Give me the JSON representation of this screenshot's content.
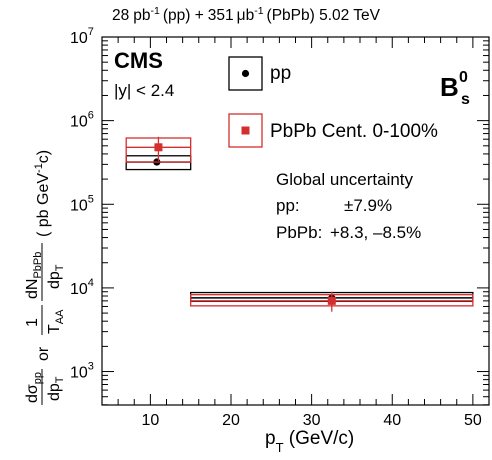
{
  "chart_data": {
    "type": "scatter",
    "header": {
      "lumi_pp": "28",
      "lumi_pp_unit": "pb",
      "lumi_pp_exp": "-1",
      "lumi_pp_label": "(pp) +",
      "lumi_pbpb": "351",
      "lumi_pbpb_unit": "μb",
      "lumi_pbpb_exp": "-1",
      "lumi_pbpb_label": "(PbPb) 5.02 TeV"
    },
    "experiment": "CMS",
    "rapidity_cut": "|y| < 2.4",
    "particle": {
      "base": "B",
      "sup": "0",
      "sub": "s"
    },
    "xlabel": {
      "main": "p",
      "sub": "T",
      "unit": " (GeV/c)"
    },
    "ylabel": {
      "pp_num": "dσ",
      "pp_num_sub": "pp",
      "pp_den": "dp",
      "pp_den_sub": "T",
      "or": "or",
      "taa_num": "1",
      "taa_den": "T",
      "taa_den_sub": "AA",
      "pbpb_num": "dN",
      "pbpb_num_sub": "PbPb",
      "pbpb_den": "dp",
      "pbpb_den_sub": "T",
      "unit_open": "( pb GeV",
      "unit_exp": "-1",
      "unit_close": "c)"
    },
    "xlim": [
      4,
      52
    ],
    "ylog": true,
    "ylim_exp": [
      2.6,
      7
    ],
    "x_ticks": [
      10,
      20,
      30,
      40,
      50
    ],
    "y_ticks": [
      {
        "base": "10",
        "exp": "3"
      },
      {
        "base": "10",
        "exp": "4"
      },
      {
        "base": "10",
        "exp": "5"
      },
      {
        "base": "10",
        "exp": "6"
      },
      {
        "base": "10",
        "exp": "7"
      }
    ],
    "series": [
      {
        "name": "pp",
        "color": "#000000",
        "marker": "circle",
        "points": [
          {
            "x": 10.8,
            "y": 320000,
            "xlow": 7,
            "xhigh": 15,
            "sys_low": 260000,
            "sys_high": 380000
          },
          {
            "x": 32.5,
            "y": 7600,
            "xlow": 15,
            "xhigh": 50,
            "sys_low": 6900,
            "sys_high": 8800
          }
        ]
      },
      {
        "name": "PbPb Cent. 0-100%",
        "color": "#d32f2f",
        "marker": "square",
        "points": [
          {
            "x": 11,
            "y": 480000,
            "ylow": 330000,
            "yhigh": 640000,
            "xlow": 7,
            "xhigh": 15,
            "sys_low": 320000,
            "sys_high": 620000
          },
          {
            "x": 32.5,
            "y": 7000,
            "ylow": 5200,
            "yhigh": 9000,
            "xlow": 15,
            "xhigh": 50,
            "sys_low": 6100,
            "sys_high": 8300
          }
        ]
      }
    ],
    "uncertainty": {
      "title": "Global uncertainty",
      "pp_label": "pp:",
      "pp_value": "±7.9%",
      "pbpb_label": "PbPb:",
      "pbpb_value": "+8.3, –8.5%"
    }
  }
}
